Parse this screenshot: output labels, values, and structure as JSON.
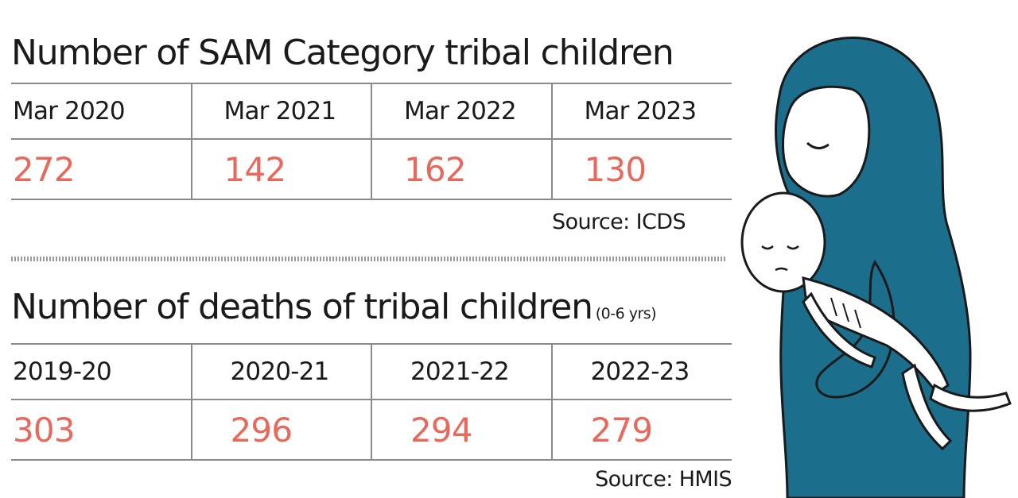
{
  "chart_data": [
    {
      "type": "table",
      "title": "Number of SAM Category tribal children",
      "categories": [
        "Mar 2020",
        "Mar 2021",
        "Mar 2022",
        "Mar 2023"
      ],
      "values": [
        "272",
        "142",
        "162",
        "130"
      ],
      "source": "Source: ICDS"
    },
    {
      "type": "table",
      "title": "Number of deaths of tribal children",
      "title_unit": "(0-6 yrs)",
      "categories": [
        "2019-20",
        "2020-21",
        "2021-22",
        "2022-23"
      ],
      "values": [
        "303",
        "296",
        "294",
        "279"
      ],
      "source": "Source: HMIS"
    }
  ],
  "colors": {
    "value_text": "#e8685c",
    "headscarf": "#1b6f8c",
    "rule": "#8a8a8a"
  },
  "illustration": {
    "icon": "mother-holding-malnourished-child-illustration"
  }
}
